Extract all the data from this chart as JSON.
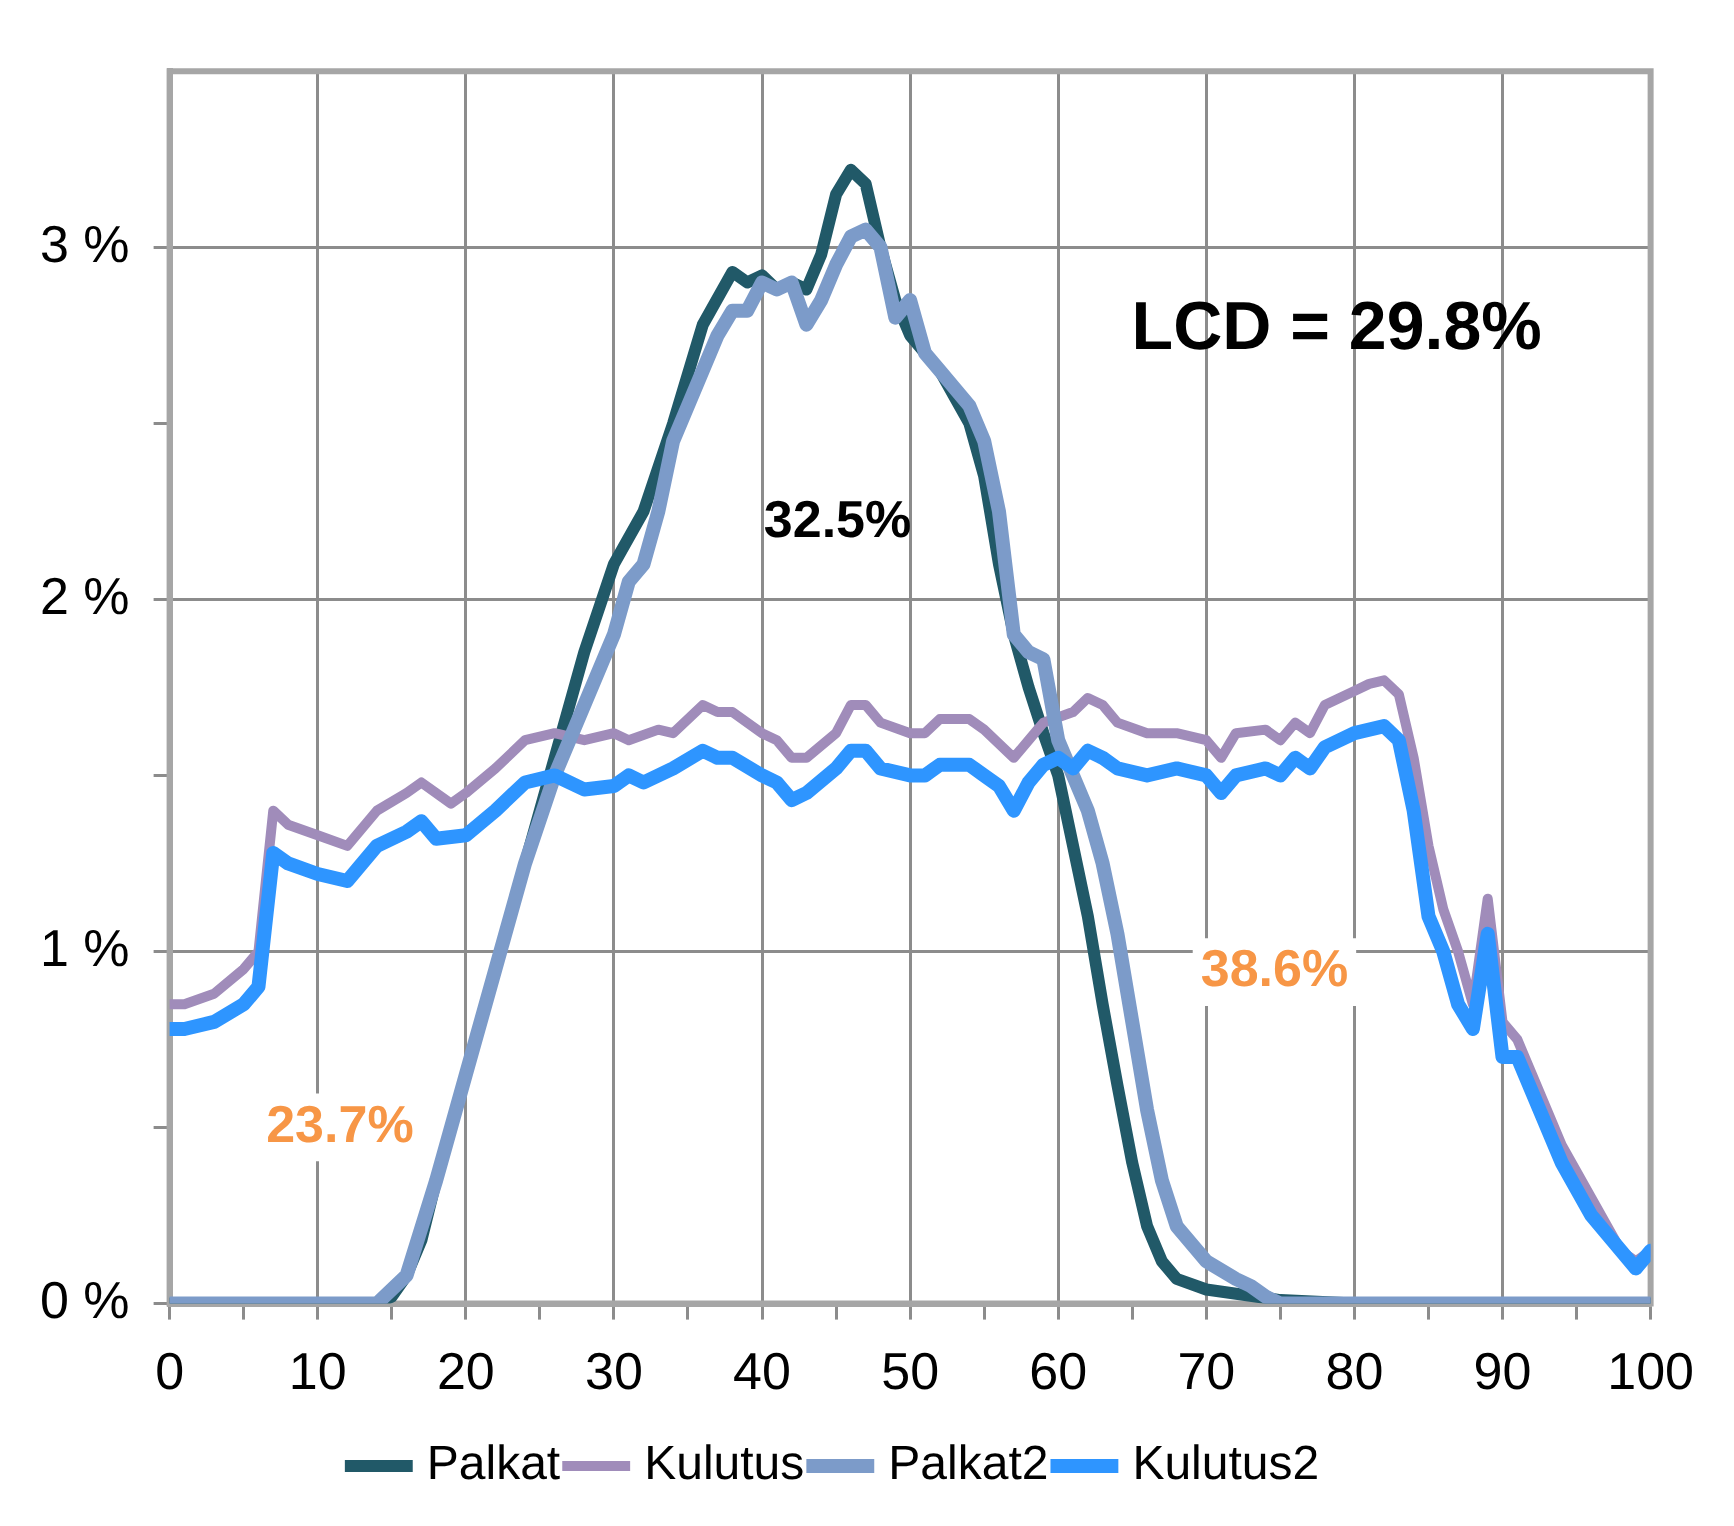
{
  "chart_data": {
    "type": "line",
    "xlim": [
      0,
      100
    ],
    "xticks": [
      0,
      {
        "value": 5,
        "label": null
      },
      10,
      {
        "value": 15,
        "label": null
      },
      20,
      {
        "value": 25,
        "label": null
      },
      30,
      {
        "value": 35,
        "label": null
      },
      40,
      {
        "value": 45,
        "label": null
      },
      50,
      {
        "value": 55,
        "label": null
      },
      60,
      {
        "value": 65,
        "label": null
      },
      70,
      {
        "value": 75,
        "label": null
      },
      80,
      {
        "value": 85,
        "label": null
      },
      90,
      {
        "value": 95,
        "label": null
      },
      100
    ],
    "ylim": [
      0,
      3.5
    ],
    "yticks": [
      {
        "value": 0,
        "label": "0 %"
      },
      {
        "value": 0.5,
        "label": null
      },
      {
        "value": 1,
        "label": "1 %"
      },
      {
        "value": 1.5,
        "label": null
      },
      {
        "value": 2,
        "label": "2 %"
      },
      {
        "value": 2.5,
        "label": null
      },
      {
        "value": 3,
        "label": "3 %"
      }
    ],
    "grid": true,
    "legend": "bottom",
    "marker": "none",
    "line_style": "solid",
    "annotations": [
      "LCD = 29.8%",
      "32.5%",
      "23.7%",
      "38.6%"
    ],
    "series": [
      {
        "name": "Palkat",
        "color": "#215968",
        "x": [
          0,
          14,
          15,
          16,
          17,
          18,
          19,
          20,
          22,
          24,
          26,
          28,
          30,
          32,
          34,
          36,
          38,
          39,
          40,
          41,
          42,
          43,
          44,
          45,
          46,
          47,
          48,
          49,
          50,
          52,
          54,
          55,
          56,
          57,
          58,
          59,
          60,
          61,
          62,
          63,
          64,
          65,
          66,
          67,
          68,
          70,
          75,
          80,
          100
        ],
        "values": [
          0,
          0,
          0.02,
          0.08,
          0.18,
          0.35,
          0.5,
          0.65,
          0.95,
          1.25,
          1.55,
          1.85,
          2.1,
          2.25,
          2.5,
          2.78,
          2.93,
          2.9,
          2.92,
          2.88,
          2.9,
          2.88,
          2.98,
          3.15,
          3.22,
          3.18,
          3.0,
          2.85,
          2.75,
          2.65,
          2.5,
          2.35,
          2.1,
          1.9,
          1.75,
          1.62,
          1.5,
          1.3,
          1.1,
          0.85,
          0.62,
          0.4,
          0.22,
          0.12,
          0.07,
          0.04,
          0.01,
          0,
          0
        ]
      },
      {
        "name": "Kulutus",
        "color": "#a08cba",
        "x": [
          0,
          1,
          3,
          5,
          6,
          7,
          8,
          10,
          12,
          14,
          16,
          17,
          19,
          20,
          22,
          24,
          26,
          28,
          30,
          31,
          33,
          34,
          36,
          37,
          38,
          40,
          41,
          42,
          43,
          45,
          46,
          47,
          48,
          50,
          51,
          52,
          54,
          55,
          57,
          58,
          59,
          61,
          62,
          63,
          64,
          66,
          68,
          70,
          71,
          72,
          74,
          75,
          76,
          77,
          78,
          80,
          81,
          82,
          83,
          84,
          85,
          86,
          87,
          88,
          89,
          90,
          91,
          92,
          94,
          96,
          98,
          99,
          100
        ],
        "values": [
          0.85,
          0.85,
          0.88,
          0.95,
          1.0,
          1.4,
          1.36,
          1.33,
          1.3,
          1.4,
          1.45,
          1.48,
          1.42,
          1.45,
          1.52,
          1.6,
          1.62,
          1.6,
          1.62,
          1.6,
          1.63,
          1.62,
          1.7,
          1.68,
          1.68,
          1.62,
          1.6,
          1.55,
          1.55,
          1.62,
          1.7,
          1.7,
          1.65,
          1.62,
          1.62,
          1.66,
          1.66,
          1.63,
          1.55,
          1.6,
          1.65,
          1.68,
          1.72,
          1.7,
          1.65,
          1.62,
          1.62,
          1.6,
          1.55,
          1.62,
          1.63,
          1.6,
          1.65,
          1.62,
          1.7,
          1.74,
          1.76,
          1.77,
          1.73,
          1.55,
          1.3,
          1.12,
          1.0,
          0.85,
          1.15,
          0.8,
          0.75,
          0.65,
          0.45,
          0.3,
          0.15,
          0.12,
          0.15
        ]
      },
      {
        "name": "Palkat2",
        "color": "#7c9bc9",
        "x": [
          0,
          14,
          16,
          18,
          20,
          22,
          24,
          26,
          28,
          30,
          31,
          32,
          33,
          34,
          36,
          37,
          38,
          39,
          40,
          41,
          42,
          43,
          44,
          45,
          46,
          47,
          48,
          49,
          50,
          51,
          52,
          54,
          55,
          56,
          57,
          58,
          59,
          60,
          61,
          62,
          63,
          64,
          65,
          66,
          67,
          68,
          70,
          72,
          73,
          74,
          75,
          100
        ],
        "values": [
          0,
          0,
          0.08,
          0.35,
          0.65,
          0.95,
          1.25,
          1.5,
          1.7,
          1.9,
          2.05,
          2.1,
          2.25,
          2.45,
          2.65,
          2.75,
          2.82,
          2.82,
          2.9,
          2.88,
          2.9,
          2.78,
          2.85,
          2.95,
          3.03,
          3.05,
          3.0,
          2.8,
          2.85,
          2.7,
          2.65,
          2.55,
          2.45,
          2.25,
          1.9,
          1.85,
          1.83,
          1.6,
          1.5,
          1.4,
          1.25,
          1.05,
          0.8,
          0.55,
          0.35,
          0.22,
          0.12,
          0.07,
          0.05,
          0.02,
          0,
          0
        ]
      },
      {
        "name": "Kulutus2",
        "color": "#2e95ff",
        "x": [
          0,
          1,
          3,
          5,
          6,
          7,
          8,
          10,
          12,
          14,
          16,
          17,
          18,
          20,
          22,
          24,
          26,
          28,
          30,
          31,
          32,
          34,
          36,
          37,
          38,
          40,
          41,
          42,
          43,
          45,
          46,
          47,
          48,
          50,
          51,
          52,
          54,
          55,
          56,
          57,
          58,
          59,
          60,
          61,
          62,
          63,
          64,
          66,
          68,
          70,
          71,
          72,
          74,
          75,
          76,
          77,
          78,
          80,
          82,
          83,
          84,
          85,
          86,
          87,
          88,
          89,
          90,
          91,
          92,
          94,
          96,
          98,
          99,
          100
        ],
        "values": [
          0.78,
          0.78,
          0.8,
          0.85,
          0.9,
          1.28,
          1.25,
          1.22,
          1.2,
          1.3,
          1.34,
          1.37,
          1.32,
          1.33,
          1.4,
          1.48,
          1.5,
          1.46,
          1.47,
          1.5,
          1.48,
          1.52,
          1.57,
          1.55,
          1.55,
          1.5,
          1.48,
          1.43,
          1.45,
          1.52,
          1.57,
          1.57,
          1.52,
          1.5,
          1.5,
          1.53,
          1.53,
          1.5,
          1.47,
          1.4,
          1.48,
          1.53,
          1.55,
          1.52,
          1.57,
          1.55,
          1.52,
          1.5,
          1.52,
          1.5,
          1.45,
          1.5,
          1.52,
          1.5,
          1.55,
          1.52,
          1.58,
          1.62,
          1.64,
          1.6,
          1.4,
          1.1,
          1.0,
          0.85,
          0.78,
          1.05,
          0.7,
          0.7,
          0.6,
          0.4,
          0.25,
          0.15,
          0.1,
          0.15
        ]
      }
    ]
  }
}
